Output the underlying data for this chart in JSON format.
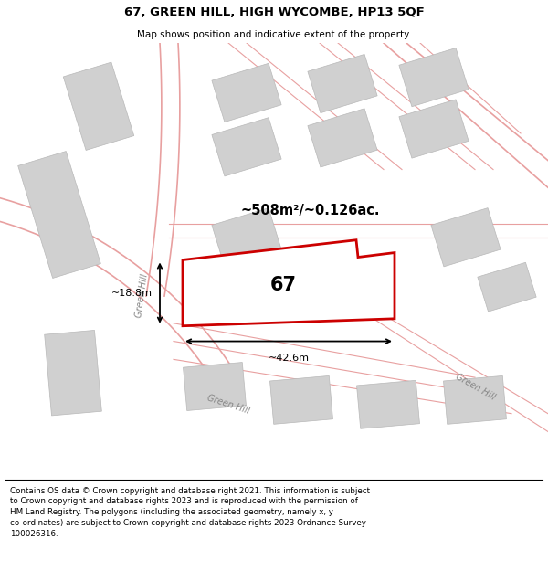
{
  "title": "67, GREEN HILL, HIGH WYCOMBE, HP13 5QF",
  "subtitle": "Map shows position and indicative extent of the property.",
  "footer": "Contains OS data © Crown copyright and database right 2021. This information is subject\nto Crown copyright and database rights 2023 and is reproduced with the permission of\nHM Land Registry. The polygons (including the associated geometry, namely x, y\nco-ordinates) are subject to Crown copyright and database rights 2023 Ordnance Survey\n100026316.",
  "area_label": "~508m²/~0.126ac.",
  "number_label": "67",
  "dim_width": "~42.6m",
  "dim_height": "~18.8m",
  "road_label_left": "Green Hill",
  "road_label_bottom": "Green Hill",
  "road_label_right": "Green Hill",
  "plot_color": "#cc0000",
  "block_color": "#d0d0d0",
  "block_edge": "#b8b8b8",
  "road_color": "#e8a0a0",
  "bg_color": "#ffffff"
}
